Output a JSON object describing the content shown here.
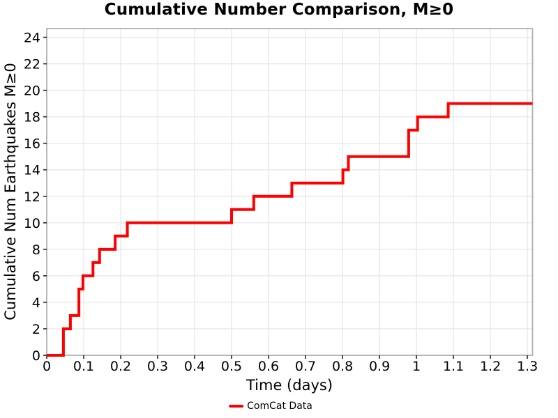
{
  "figure": {
    "title": "Cumulative Number Comparison, M≥0"
  },
  "chart_data": {
    "type": "line",
    "subtype": "step-post",
    "title": "Cumulative Number Comparison, M≥0",
    "xlabel": "Time (days)",
    "ylabel": "Cumulative Num Earthquakes M≥0",
    "xlim": [
      0,
      1.314
    ],
    "ylim": [
      0,
      24.66
    ],
    "grid": true,
    "x_ticks": [
      0,
      0.1,
      0.2,
      0.3,
      0.4,
      0.5,
      0.6,
      0.7,
      0.8,
      0.9,
      1.0,
      1.1,
      1.2,
      1.3
    ],
    "x_tick_labels": [
      "0",
      "0.1",
      "0.2",
      "0.3",
      "0.4",
      "0.5",
      "0.6",
      "0.7",
      "0.8",
      "0.9",
      "1",
      "1.1",
      "1.2",
      "1.3"
    ],
    "y_ticks": [
      0,
      2,
      4,
      6,
      8,
      10,
      12,
      14,
      16,
      18,
      20,
      22,
      24
    ],
    "y_tick_labels": [
      "0",
      "2",
      "4",
      "6",
      "8",
      "10",
      "12",
      "14",
      "16",
      "18",
      "20",
      "22",
      "24"
    ],
    "legend": {
      "position": "bottom-center",
      "entries": [
        {
          "label": "ComCat Data",
          "color": "#ff0000"
        }
      ]
    },
    "series": [
      {
        "name": "ComCat Data",
        "color": "#ff0000",
        "line_width": 4,
        "start": [
          0,
          0
        ],
        "events": [
          [
            0.045,
            2
          ],
          [
            0.064,
            3
          ],
          [
            0.087,
            5
          ],
          [
            0.098,
            6
          ],
          [
            0.125,
            7
          ],
          [
            0.143,
            8
          ],
          [
            0.185,
            9
          ],
          [
            0.218,
            10
          ],
          [
            0.5,
            11
          ],
          [
            0.56,
            12
          ],
          [
            0.663,
            13
          ],
          [
            0.801,
            14
          ],
          [
            0.816,
            15
          ],
          [
            0.979,
            17
          ],
          [
            1.003,
            18
          ],
          [
            1.086,
            19
          ]
        ],
        "end_t": 1.314
      }
    ]
  },
  "colors": {
    "line_red": "#ff0000",
    "grid": "#e5e5e5",
    "spine": "#b0b0b0",
    "tick": "#262626",
    "text": "#000000",
    "background": "#ffffff"
  }
}
